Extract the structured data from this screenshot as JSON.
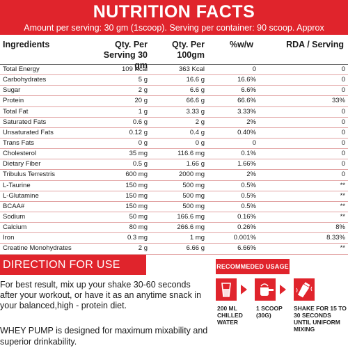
{
  "header": {
    "title": "NUTRITION FACTS",
    "subtitle": "Amount per serving: 30 gm (1scoop). Serving per container: 90 scoop. Approx"
  },
  "table": {
    "columns": [
      "Ingredients",
      "Qty. Per Serving 30 gm",
      "Qty. Per 100gm",
      "%w/w",
      "RDA / Serving"
    ],
    "rows": [
      [
        "Total Energy",
        "109 Kcal",
        "363 Kcal",
        "0",
        "0"
      ],
      [
        "Carbohydrates",
        "5 g",
        "16.6 g",
        "16.6%",
        "0"
      ],
      [
        "Sugar",
        "2 g",
        "6.6 g",
        "6.6%",
        "0"
      ],
      [
        "Protein",
        "20 g",
        "66.6 g",
        "66.6%",
        "33%"
      ],
      [
        "Total Fat",
        "1 g",
        "3.33 g",
        "3.33%",
        "0"
      ],
      [
        "Saturated Fats",
        "0.6 g",
        "2 g",
        "2%",
        "0"
      ],
      [
        "Unsaturated Fats",
        "0.12 g",
        "0.4 g",
        "0.40%",
        "0"
      ],
      [
        "Trans Fats",
        "0 g",
        "0 g",
        "0",
        "0"
      ],
      [
        "Cholesterol",
        "35 mg",
        "116.6 mg",
        "0.1%",
        "0"
      ],
      [
        "Dietary Fiber",
        "0.5 g",
        "1.66 g",
        "1.66%",
        "0"
      ],
      [
        "Tribulus Terrestris",
        "600 mg",
        "2000 mg",
        "2%",
        "0"
      ],
      [
        "L-Taurine",
        "150 mg",
        "500 mg",
        "0.5%",
        "**"
      ],
      [
        "L-Glutamine",
        "150 mg",
        "500 mg",
        "0.5%",
        "**"
      ],
      [
        "BCAA#",
        "150 mg",
        "500 mg",
        "0.5%",
        "**"
      ],
      [
        "Sodium",
        "50 mg",
        "166.6 mg",
        "0.16%",
        "**"
      ],
      [
        "Calcium",
        "80 mg",
        "266.6 mg",
        "0.26%",
        "8%"
      ],
      [
        "Iron",
        "0.3 mg",
        "1 mg",
        "0.001%",
        "8.33%"
      ],
      [
        "Creatine Monohydrates",
        "2 g",
        "6.66 g",
        "6.66%",
        "**"
      ]
    ]
  },
  "direction": {
    "title": "DIRECTION FOR USE",
    "paragraph1": "For best result, mix up your shake 30-60 seconds after your workout, or have it as an anytime snack in your balanced,high - protein diet.",
    "paragraph2": "WHEY PUMP is designed for maximum mixability and superior drinkability."
  },
  "recommended": {
    "title": "RECOMMEDED USAGE",
    "steps": [
      {
        "icon": "glass-icon",
        "label": "200 ML CHILLED WATER"
      },
      {
        "icon": "scoop-icon",
        "label": "1 SCOOP (30G)"
      },
      {
        "icon": "shaker-icon",
        "label": "SHAKE FOR 15 TO 30 SECONDS UNTIL UNIFORM MIXING"
      }
    ]
  },
  "colors": {
    "accent": "#e0242c",
    "row_divider": "#e2a3a3"
  }
}
